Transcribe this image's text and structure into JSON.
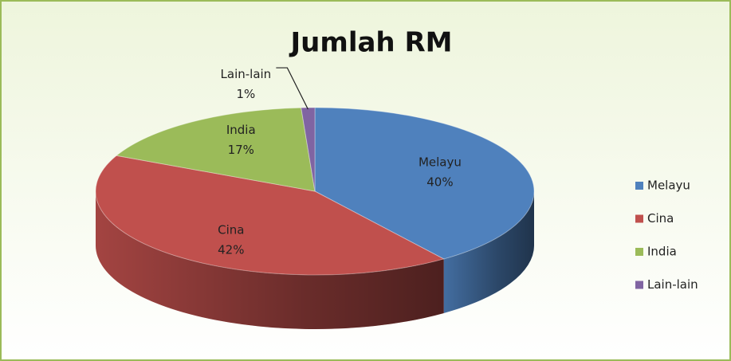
{
  "chart_data": {
    "type": "pie",
    "title": "Jumlah RM",
    "categories": [
      "Melayu",
      "Cina",
      "India",
      "Lain-lain"
    ],
    "values": [
      40,
      42,
      17,
      1
    ],
    "value_labels": [
      "40%",
      "42%",
      "17%",
      "1%"
    ],
    "colors": [
      "#4f81bd",
      "#c0504d",
      "#9bbb59",
      "#8064a2"
    ],
    "legend": "right"
  }
}
